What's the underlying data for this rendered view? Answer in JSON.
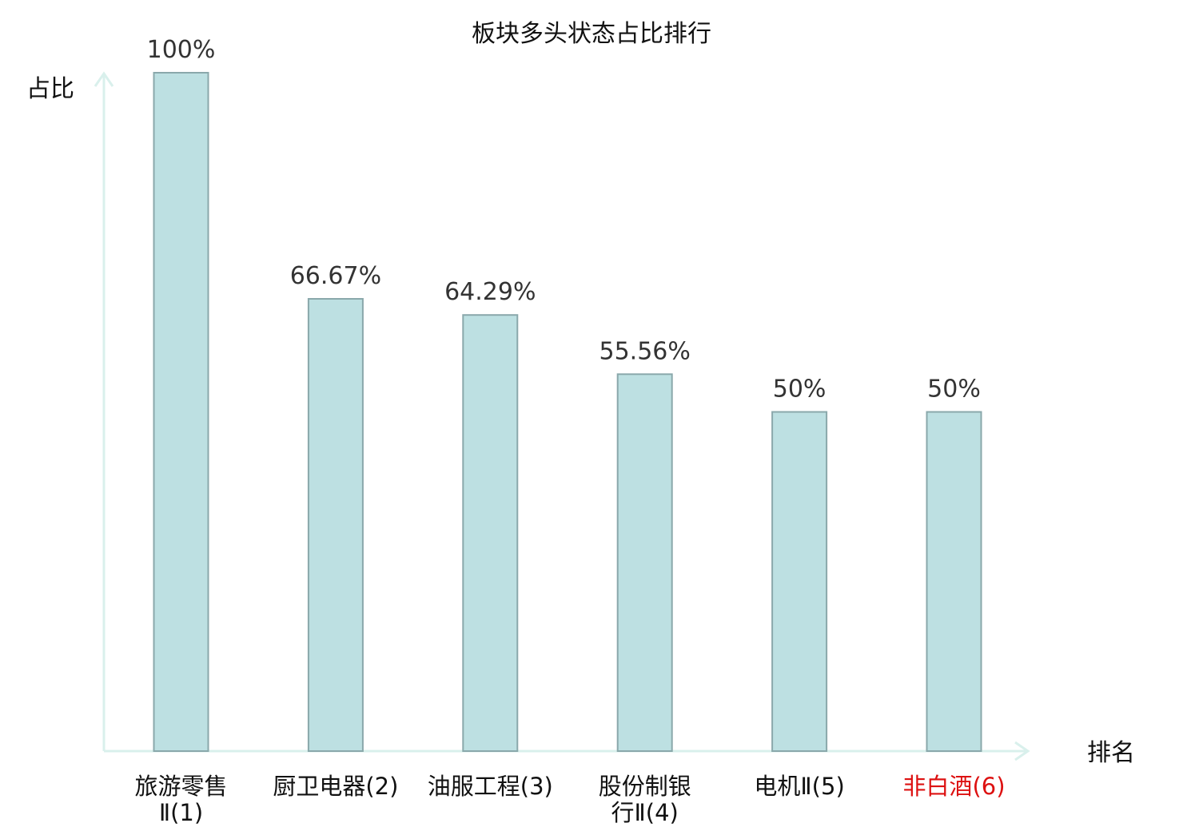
{
  "chart_data": {
    "type": "bar",
    "title": "板块多头状态占比排行",
    "ylabel": "占比",
    "xlabel": "排名",
    "categories": [
      "旅游零售Ⅱ(1)",
      "厨卫电器(2)",
      "油服工程(3)",
      "股份制银行Ⅱ(4)",
      "电机Ⅱ(5)",
      "非白酒(6)"
    ],
    "category_lines": [
      [
        "旅游零售",
        "Ⅱ(1)"
      ],
      [
        "厨卫电器(2)"
      ],
      [
        "油服工程(3)"
      ],
      [
        "股份制银",
        "行Ⅱ(4)"
      ],
      [
        "电机Ⅱ(5)"
      ],
      [
        "非白酒(6)"
      ]
    ],
    "values": [
      100,
      66.67,
      64.29,
      55.56,
      50,
      50
    ],
    "value_labels": [
      "100%",
      "66.67%",
      "64.29%",
      "55.56%",
      "50%",
      "50%"
    ],
    "highlight_index": 5,
    "ylim": [
      0,
      100
    ],
    "grid": false,
    "legend": "none",
    "colors": {
      "bar_fill": "#bde0e2",
      "bar_stroke": "#8aa8ab",
      "axis": "#d9f0ec",
      "label_text": "#333333",
      "highlight_text": "#dd1111"
    }
  }
}
